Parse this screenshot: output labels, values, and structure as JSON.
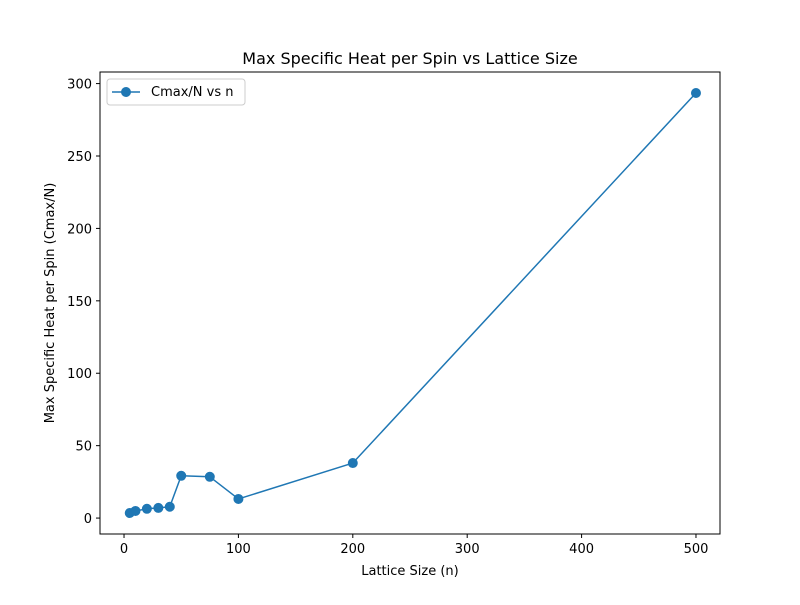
{
  "chart_data": {
    "type": "line",
    "title": "Max Specific Heat per Spin vs Lattice Size",
    "xlabel": "Lattice Size (n)",
    "ylabel": "Max Specific Heat per Spin (Cmax/N)",
    "xlim": [
      -21,
      521
    ],
    "ylim": [
      -11,
      308
    ],
    "xticks": [
      0,
      100,
      200,
      300,
      400,
      500
    ],
    "yticks": [
      0,
      50,
      100,
      150,
      200,
      250,
      300
    ],
    "xtick_labels": [
      "0",
      "100",
      "200",
      "300",
      "400",
      "500"
    ],
    "ytick_labels": [
      "0",
      "50",
      "100",
      "150",
      "200",
      "250",
      "300"
    ],
    "grid": false,
    "legend_position": "upper-left",
    "series": [
      {
        "name": "Cmax/N vs n",
        "color": "#1f77b4",
        "marker": "circle",
        "x": [
          5,
          10,
          20,
          30,
          40,
          50,
          75,
          100,
          200,
          500
        ],
        "y": [
          3.5,
          4.9,
          6.4,
          7.0,
          7.8,
          29.2,
          28.5,
          13.2,
          38.0,
          293.5
        ]
      }
    ]
  }
}
